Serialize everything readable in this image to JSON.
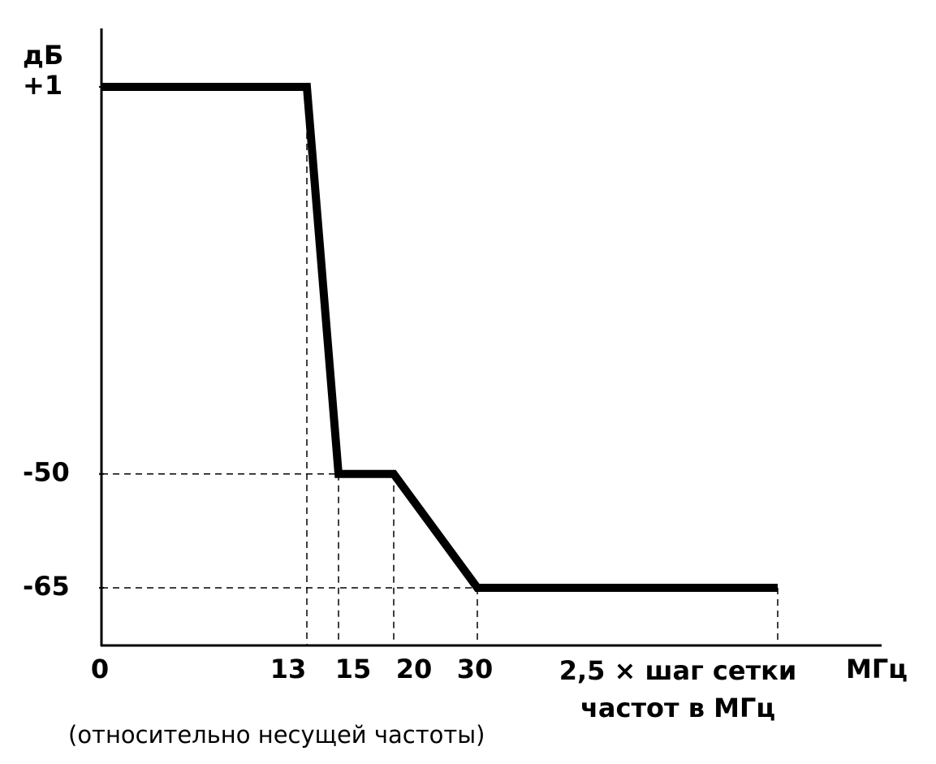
{
  "chart_data": {
    "type": "line",
    "y_unit": "дБ",
    "x_unit": "МГц",
    "note": "(относительно несущей частоты)",
    "categories": [
      "0",
      "13",
      "15",
      "20",
      "30",
      "2,5 × шаг сетки частот в МГц"
    ],
    "values": [
      1,
      1,
      -50,
      -50,
      -65,
      -65
    ],
    "color": "#000000",
    "ylim": [
      -72.6,
      8.7
    ],
    "yticks": [
      {
        "value": 1,
        "label": "+1"
      },
      -50,
      -65
    ]
  }
}
